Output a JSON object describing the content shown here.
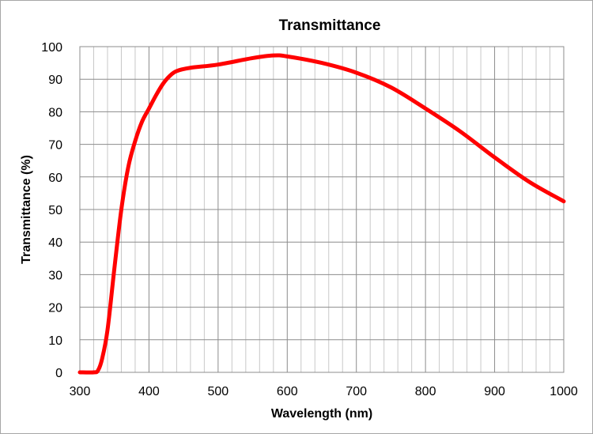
{
  "chart_data": {
    "type": "line",
    "title": "Transmittance",
    "xlabel": "Wavelength (nm)",
    "ylabel": "Transmittance (%)",
    "xlim": [
      300,
      1000
    ],
    "ylim": [
      0,
      100
    ],
    "xticks": [
      300,
      400,
      500,
      600,
      700,
      800,
      900,
      1000
    ],
    "yticks": [
      0,
      10,
      20,
      30,
      40,
      50,
      60,
      70,
      80,
      90,
      100
    ],
    "x_minor_step": 20,
    "grid": true,
    "legend": "none",
    "colors": {
      "line": "#ff0000",
      "major_grid": "#8c8c8c",
      "minor_grid": "#c8c8c8"
    },
    "series": [
      {
        "x": [
          300,
          320,
          326,
          332,
          340,
          350,
          360,
          370,
          380,
          390,
          400,
          410,
          420,
          430,
          440,
          460,
          500,
          550,
          580,
          600,
          650,
          700,
          750,
          800,
          850,
          900,
          950,
          1000
        ],
        "y": [
          0,
          0,
          0.5,
          4,
          13,
          32,
          50,
          63,
          71,
          77,
          81,
          85,
          88.5,
          91,
          92.5,
          93.5,
          94.5,
          96.5,
          97.3,
          97,
          95,
          92,
          87.5,
          81,
          74,
          66,
          58.5,
          52.5
        ]
      }
    ]
  }
}
